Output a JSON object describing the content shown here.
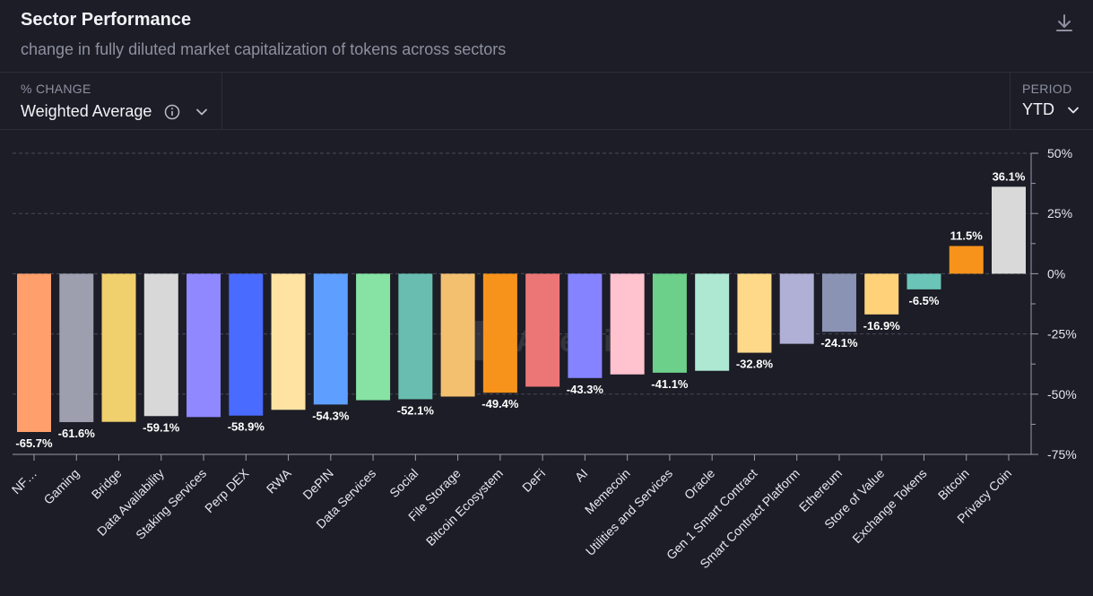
{
  "header": {
    "title": "Sector Performance",
    "subtitle": "change in fully diluted market capitalization of tokens across sectors",
    "download_icon": "download-icon"
  },
  "controls": {
    "metric_label": "% CHANGE",
    "metric_value": "Weighted Average",
    "info_icon": "info-icon",
    "period_label": "PERIOD",
    "period_value": "YTD"
  },
  "watermark": "Artemis",
  "chart_data": {
    "type": "bar",
    "title": "Sector Performance",
    "ylim": [
      -75,
      50
    ],
    "y_ticks": [
      50,
      25,
      0,
      -25,
      -50,
      -75
    ],
    "y_tick_labels": [
      "50%",
      "25%",
      "0%",
      "-25%",
      "-50%",
      "-75%"
    ],
    "grid": true,
    "categories": [
      "NF…",
      "Gaming",
      "Bridge",
      "Data Availability",
      "Staking Services",
      "Perp DEX",
      "RWA",
      "DePIN",
      "Data Services",
      "Social",
      "File Storage",
      "Bitcoin Ecosystem",
      "DeFi",
      "AI",
      "Memecoin",
      "Utilities and Services",
      "Oracle",
      "Gen 1 Smart Contract",
      "Smart Contract Platform",
      "Ethereum",
      "Store of Value",
      "Exchange Tokens",
      "Bitcoin",
      "Privacy Coin"
    ],
    "values": [
      -65.7,
      -61.6,
      -61.5,
      -59.1,
      -59.5,
      -58.9,
      -56.5,
      -54.3,
      -52.5,
      -52.1,
      -51.0,
      -49.4,
      -46.9,
      -43.3,
      -41.8,
      -41.1,
      -40.3,
      -32.8,
      -29.1,
      -24.1,
      -16.9,
      -6.5,
      11.5,
      36.1
    ],
    "data_labels": [
      "-65.7%",
      "-61.6%",
      "",
      "-59.1%",
      "",
      "-58.9%",
      "",
      "-54.3%",
      "",
      "-52.1%",
      "",
      "-49.4%",
      "",
      "-43.3%",
      "",
      "-41.1%",
      "",
      "-32.8%",
      "",
      "-24.1%",
      "-16.9%",
      "-6.5%",
      "11.5%",
      "36.1%"
    ],
    "colors": [
      "#ff9f6b",
      "#9d9fae",
      "#f0d06c",
      "#d8d8d8",
      "#8f88ff",
      "#4a6bff",
      "#ffe3a3",
      "#5d9eff",
      "#86e3a3",
      "#68bdb0",
      "#f3c070",
      "#f7931a",
      "#ec7676",
      "#8583ff",
      "#ffc2cf",
      "#6ccf8a",
      "#aee8d2",
      "#ffd98a",
      "#b0b0d6",
      "#8b93b5",
      "#ffd27a",
      "#6bc4b8",
      "#f7931a",
      "#d9d9d9"
    ]
  }
}
